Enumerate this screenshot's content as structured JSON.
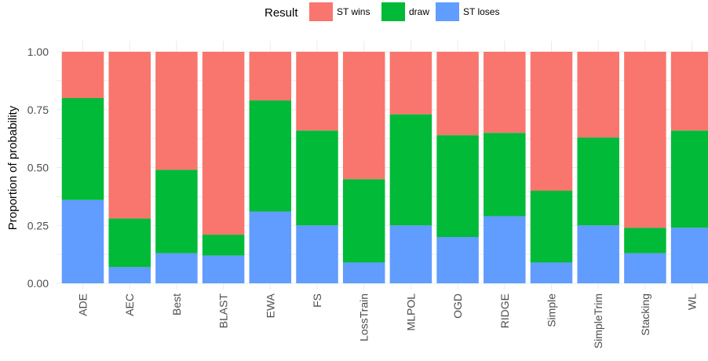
{
  "chart_data": {
    "type": "bar",
    "stacked": true,
    "title": "",
    "xlabel": "",
    "ylabel": "Proportion of probability",
    "ylim": [
      0,
      1
    ],
    "yticks": [
      0,
      0.25,
      0.5,
      0.75,
      1
    ],
    "ytick_labels": [
      "0.00",
      "0.25",
      "0.50",
      "0.75",
      "1.00"
    ],
    "grid": true,
    "legend": {
      "title": "Result",
      "position": "top",
      "entries": [
        {
          "name": "ST wins",
          "color": "#F8766D"
        },
        {
          "name": "draw",
          "color": "#00BA38"
        },
        {
          "name": "ST loses",
          "color": "#619CFF"
        }
      ]
    },
    "categories": [
      "ADE",
      "AEC",
      "Best",
      "BLAST",
      "EWA",
      "FS",
      "LossTrain",
      "MLPOL",
      "OGD",
      "RIDGE",
      "Simple",
      "SimpleTrim",
      "Stacking",
      "WL"
    ],
    "series": [
      {
        "name": "ST loses",
        "color": "#619CFF",
        "values": [
          0.36,
          0.07,
          0.13,
          0.12,
          0.31,
          0.25,
          0.09,
          0.25,
          0.2,
          0.29,
          0.09,
          0.25,
          0.13,
          0.24
        ]
      },
      {
        "name": "draw",
        "color": "#00BA38",
        "values": [
          0.44,
          0.21,
          0.36,
          0.09,
          0.48,
          0.41,
          0.36,
          0.48,
          0.44,
          0.36,
          0.31,
          0.38,
          0.11,
          0.42
        ]
      },
      {
        "name": "ST wins",
        "color": "#F8766D",
        "values": [
          0.2,
          0.72,
          0.51,
          0.79,
          0.21,
          0.34,
          0.55,
          0.27,
          0.36,
          0.35,
          0.6,
          0.37,
          0.76,
          0.34
        ]
      }
    ]
  }
}
